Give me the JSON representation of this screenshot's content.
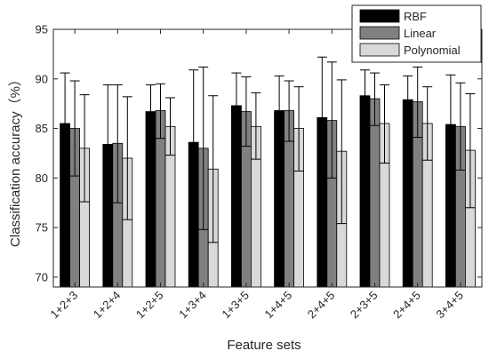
{
  "chart_data": {
    "type": "bar",
    "xlabel": "Feature sets",
    "ylabel": "Classification accuracy（%）",
    "ylim": [
      69,
      95
    ],
    "yticks": [
      70,
      75,
      80,
      85,
      90,
      95
    ],
    "categories": [
      "1+2+3",
      "1+2+4",
      "1+2+5",
      "1+3+4",
      "1+3+5",
      "1+4+5",
      "2+4+5",
      "2+3+5",
      "2+4+5",
      "3+4+5"
    ],
    "series": [
      {
        "name": "RBF",
        "color": "#000000",
        "values": [
          85.5,
          83.4,
          86.7,
          83.6,
          87.3,
          86.8,
          86.1,
          88.3,
          87.9,
          85.4
        ],
        "err_low": [
          80.5,
          77.6,
          84.2,
          76.4,
          84.2,
          83.3,
          80.0,
          85.7,
          85.4,
          80.5
        ],
        "err_high": [
          90.6,
          89.4,
          89.4,
          90.9,
          90.6,
          90.3,
          92.2,
          90.9,
          90.3,
          90.4
        ]
      },
      {
        "name": "Linear",
        "color": "#808080",
        "values": [
          85.0,
          83.5,
          86.8,
          83.0,
          86.7,
          86.8,
          85.8,
          88.0,
          87.7,
          85.2
        ],
        "err_low": [
          80.2,
          77.5,
          84.0,
          74.8,
          83.2,
          83.7,
          80.0,
          85.3,
          84.1,
          80.8
        ],
        "err_high": [
          89.8,
          89.4,
          89.5,
          91.2,
          90.2,
          89.8,
          91.7,
          90.6,
          91.2,
          89.6
        ]
      },
      {
        "name": "Polynomial",
        "color": "#d9d9d9",
        "values": [
          83.0,
          82.0,
          85.2,
          80.9,
          85.2,
          85.0,
          82.7,
          85.5,
          85.5,
          82.8
        ],
        "err_low": [
          77.6,
          75.8,
          82.3,
          73.5,
          81.9,
          80.7,
          75.4,
          81.5,
          81.8,
          77.0
        ],
        "err_high": [
          88.4,
          88.2,
          88.1,
          88.3,
          88.6,
          89.2,
          89.9,
          89.4,
          89.2,
          88.5
        ]
      }
    ],
    "legend_position": "top-right",
    "grid": false
  }
}
